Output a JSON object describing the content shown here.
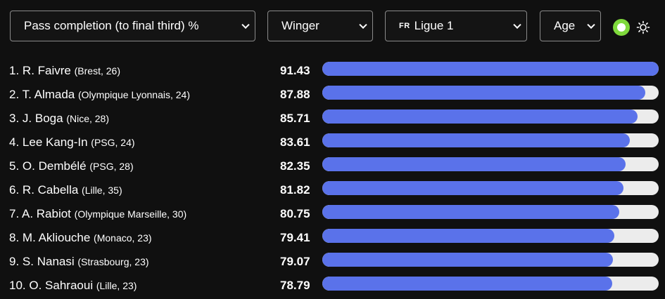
{
  "filters": {
    "metric": "Pass completion (to final third) %",
    "position": "Winger",
    "league_flag": "FR",
    "league": "Ligue 1",
    "sort": "Age"
  },
  "theme": {
    "dark_icon": "circle-toggle-icon",
    "light_icon": "sun-icon",
    "active_color": "#7fd93c",
    "bar_color": "#5a72ea",
    "track_color": "#ececec"
  },
  "max_value": 91.43,
  "players": [
    {
      "rank": "1.",
      "name": "R. Faivre",
      "meta": "(Brest, 26)",
      "value": "91.43"
    },
    {
      "rank": "2.",
      "name": "T. Almada",
      "meta": "(Olympique Lyonnais, 24)",
      "value": "87.88"
    },
    {
      "rank": "3.",
      "name": "J. Boga",
      "meta": "(Nice, 28)",
      "value": "85.71"
    },
    {
      "rank": "4.",
      "name": "Lee Kang-In",
      "meta": "(PSG, 24)",
      "value": "83.61"
    },
    {
      "rank": "5.",
      "name": "O. Dembélé",
      "meta": "(PSG, 28)",
      "value": "82.35"
    },
    {
      "rank": "6.",
      "name": "R. Cabella",
      "meta": "(Lille, 35)",
      "value": "81.82"
    },
    {
      "rank": "7.",
      "name": "A. Rabiot",
      "meta": "(Olympique Marseille, 30)",
      "value": "80.75"
    },
    {
      "rank": "8.",
      "name": "M. Akliouche",
      "meta": "(Monaco, 23)",
      "value": "79.41"
    },
    {
      "rank": "9.",
      "name": "S. Nanasi",
      "meta": "(Strasbourg, 23)",
      "value": "79.07"
    },
    {
      "rank": "10.",
      "name": "O. Sahraoui",
      "meta": "(Lille, 23)",
      "value": "78.79"
    }
  ]
}
